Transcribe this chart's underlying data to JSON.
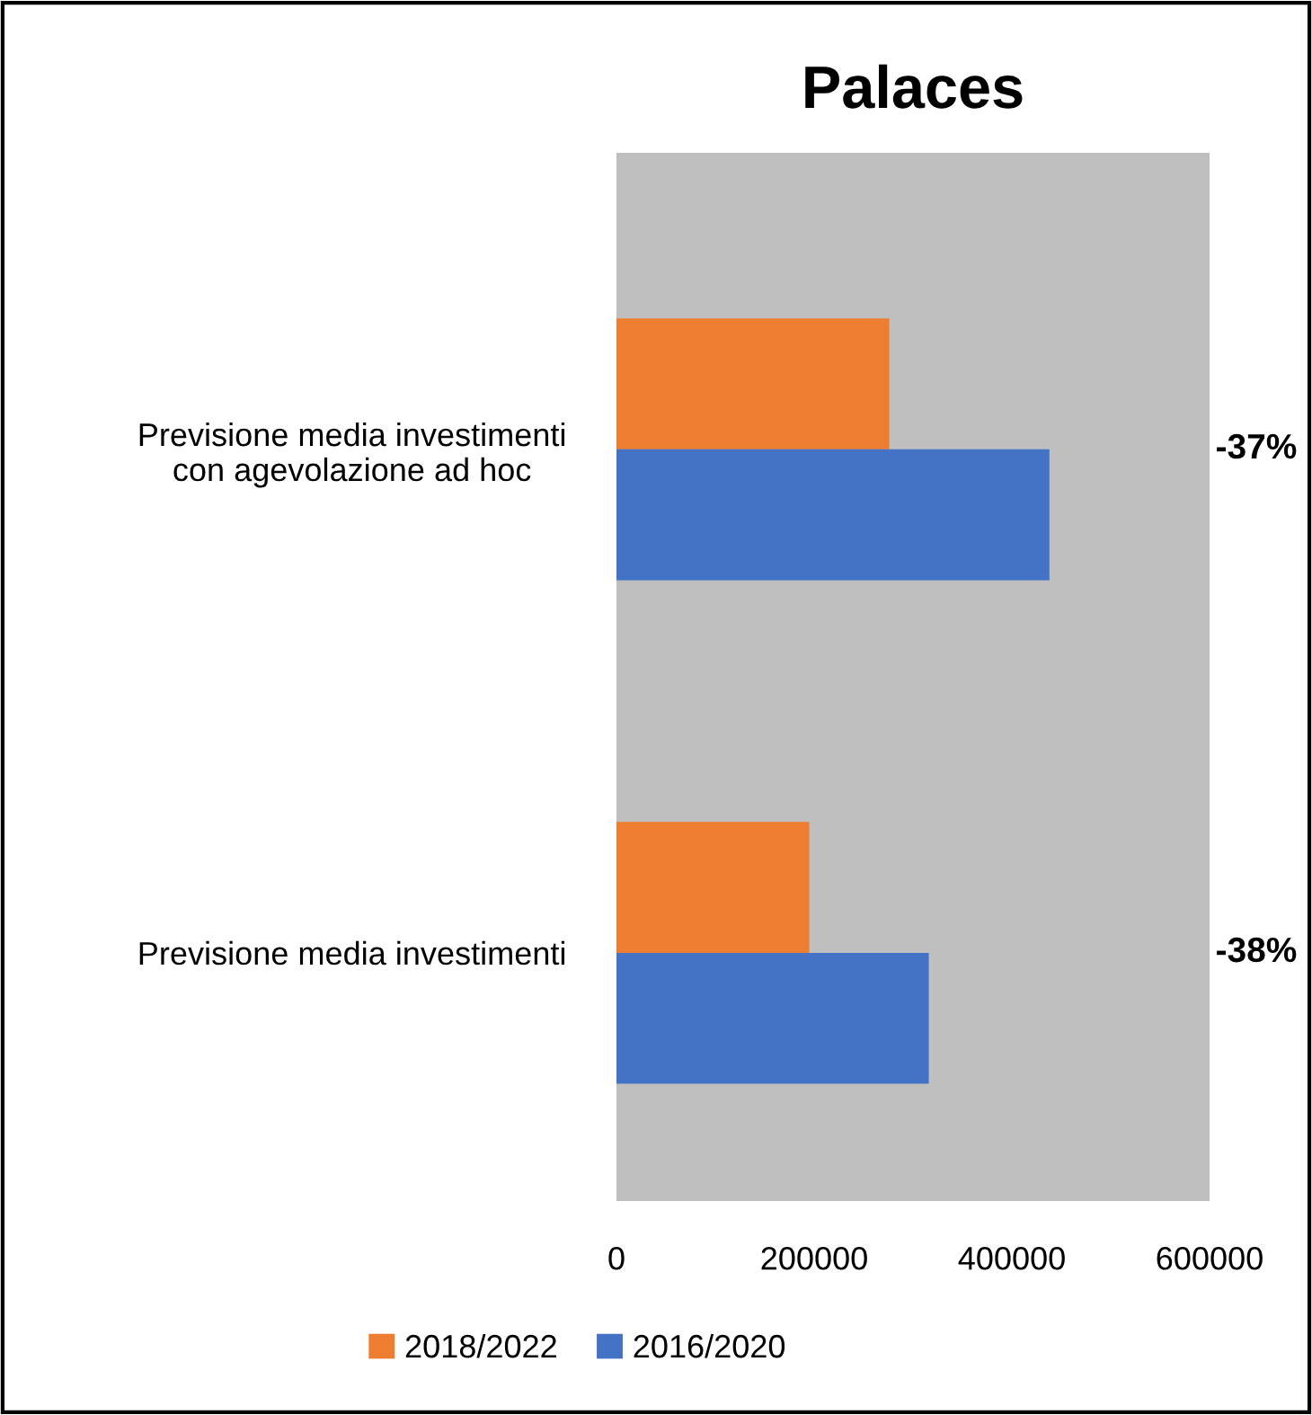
{
  "chart_data": {
    "type": "bar",
    "title": "Palaces",
    "orientation": "horizontal",
    "categories": [
      "Previsione media investimenti\ncon agevolazione ad hoc",
      "Previsione media investimenti"
    ],
    "series": [
      {
        "name": "2018/2022",
        "color": "#ed7d31",
        "values": [
          276000,
          195000
        ]
      },
      {
        "name": "2016/2020",
        "color": "#4472c4",
        "values": [
          438000,
          316000
        ]
      }
    ],
    "xlim": [
      0,
      600000
    ],
    "xticks": [
      0,
      200000,
      400000,
      600000
    ],
    "grid": false,
    "legend": "bottom",
    "annotations": [
      "-37%",
      "-38%"
    ]
  }
}
